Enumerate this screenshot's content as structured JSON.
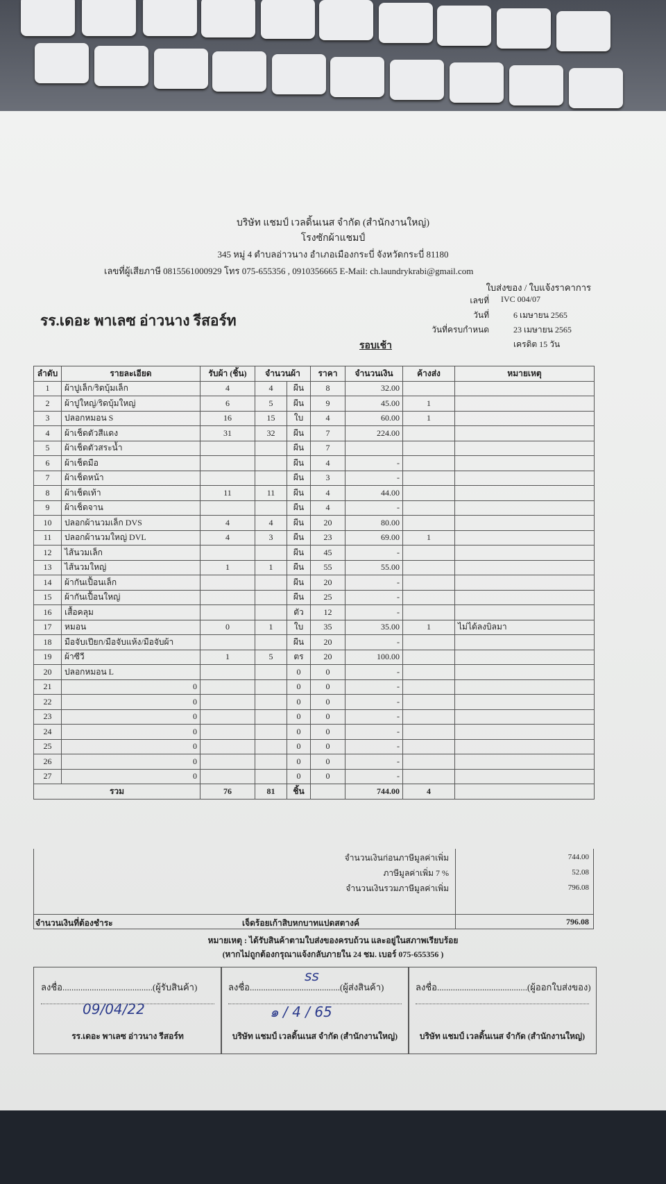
{
  "header": {
    "company": "บริษัท แชมป์ เวลดิ้นเนส จำกัด (สำนักงานใหญ่)",
    "shop": "โรงซักผ้าแชมป์",
    "address": "345 หมู่ 4 ตำบลอ่าวนาง อำเภอเมืองกระบี่ จังหวัดกระบี่ 81180",
    "contact": "เลขที่ผู้เสียภาษี 0815561000929 โทร 075-655356 , 0910356665  E-Mail: ch.laundrykrabi@gmail.com",
    "doc_type": "ใบส่งของ / ใบแจ้งราคาการ"
  },
  "customer": "รร.เดอะ พาเลซ อ่าวนาง รีสอร์ท",
  "meta": [
    {
      "label": "เลขที่",
      "value": "IVC 004/07"
    },
    {
      "label": "วันที่",
      "value": "6 เมษายน 2565"
    },
    {
      "label": "วันที่ครบกำหนด",
      "value": "23 เมษายน 2565"
    },
    {
      "label": "รอบเช้า",
      "value": "เครดิต 15 วัน"
    }
  ],
  "table": {
    "header": [
      "ลำดับ",
      "รายละเอียด",
      "รับผ้า (ชิ้น)",
      "จำนวนผ้า",
      "ราคา",
      "จำนวนเงิน",
      "ค้างส่ง",
      "หมายเหตุ"
    ],
    "rows": [
      {
        "no": "1",
        "item": "ผ้าปูเล็ก/ริดบุ้มเล็ก",
        "recv": "4",
        "qty": "4",
        "unit": "ผืน",
        "price": "8",
        "amount": "32.00"
      },
      {
        "no": "2",
        "item": "ผ้าปูใหญ่/ริดบุ้มใหญ่",
        "recv": "6",
        "qty": "5",
        "unit": "ผืน",
        "price": "9",
        "amount": "45.00",
        "pending": "1"
      },
      {
        "no": "3",
        "item": "ปลอกหมอน S",
        "recv": "16",
        "qty": "15",
        "unit": "ใบ",
        "price": "4",
        "amount": "60.00",
        "pending": "1"
      },
      {
        "no": "4",
        "item": "ผ้าเช็ดตัวสีแดง",
        "recv": "31",
        "qty": "32",
        "unit": "ผืน",
        "price": "7",
        "amount": "224.00"
      },
      {
        "no": "5",
        "item": "ผ้าเช็ดตัวสระน้ำ",
        "unit": "ผืน",
        "price": "7"
      },
      {
        "no": "6",
        "item": "ผ้าเช็ดมือ",
        "unit": "ผืน",
        "price": "4",
        "amount": "-"
      },
      {
        "no": "7",
        "item": "ผ้าเช็ดหน้า",
        "unit": "ผืน",
        "price": "3",
        "amount": "-"
      },
      {
        "no": "8",
        "item": "ผ้าเช็ดเท้า",
        "recv": "11",
        "qty": "11",
        "unit": "ผืน",
        "price": "4",
        "amount": "44.00"
      },
      {
        "no": "9",
        "item": "ผ้าเช็ดจาน",
        "unit": "ผืน",
        "price": "4",
        "amount": "-"
      },
      {
        "no": "10",
        "item": "ปลอกผ้านวมเล็ก DVS",
        "recv": "4",
        "qty": "4",
        "unit": "ผืน",
        "price": "20",
        "amount": "80.00"
      },
      {
        "no": "11",
        "item": "ปลอกผ้านวมใหญ่ DVL",
        "recv": "4",
        "qty": "3",
        "unit": "ผืน",
        "price": "23",
        "amount": "69.00",
        "pending": "1"
      },
      {
        "no": "12",
        "item": "ไส้นวมเล็ก",
        "unit": "ผืน",
        "price": "45",
        "amount": "-"
      },
      {
        "no": "13",
        "item": "ไส้นวมใหญ่",
        "recv": "1",
        "qty": "1",
        "unit": "ผืน",
        "price": "55",
        "amount": "55.00"
      },
      {
        "no": "14",
        "item": "ผ้ากันเปื้อนเล็ก",
        "unit": "ผืน",
        "price": "20",
        "amount": "-"
      },
      {
        "no": "15",
        "item": "ผ้ากันเปื้อนใหญ่",
        "unit": "ผืน",
        "price": "25",
        "amount": "-"
      },
      {
        "no": "16",
        "item": "เสื้อคลุม",
        "unit": "ตัว",
        "price": "12",
        "amount": "-"
      },
      {
        "no": "17",
        "item": "หมอน",
        "recv": "0",
        "qty": "1",
        "unit": "ใบ",
        "price": "35",
        "amount": "35.00",
        "pending": "1",
        "note": "ไม่ได้ลงบิลมา"
      },
      {
        "no": "18",
        "item": "มือจับเปียก/มือจับแห้ง/มือจับผ้า",
        "unit": "ผืน",
        "price": "20",
        "amount": "-"
      },
      {
        "no": "19",
        "item": "ผ้าซีวี",
        "recv": "1",
        "qty": "5",
        "unit": "ตร",
        "price": "20",
        "amount": "100.00"
      },
      {
        "no": "20",
        "item": "ปลอกหมอน L",
        "unit": "0",
        "price": "0",
        "amount": "-"
      },
      {
        "no": "21",
        "item": "0",
        "unit": "0",
        "price": "0",
        "amount": "-"
      },
      {
        "no": "22",
        "item": "0",
        "unit": "0",
        "price": "0",
        "amount": "-"
      },
      {
        "no": "23",
        "item": "0",
        "unit": "0",
        "price": "0",
        "amount": "-"
      },
      {
        "no": "24",
        "item": "0",
        "unit": "0",
        "price": "0",
        "amount": "-"
      },
      {
        "no": "25",
        "item": "0",
        "unit": "0",
        "price": "0",
        "amount": "-"
      },
      {
        "no": "26",
        "item": "0",
        "unit": "0",
        "price": "0",
        "amount": "-"
      },
      {
        "no": "27",
        "item": "0",
        "unit": "0",
        "price": "0",
        "amount": "-"
      }
    ],
    "total": {
      "label": "รวม",
      "recv": "76",
      "qty": "81",
      "unit": "ชิ้น",
      "amount": "744.00",
      "pending": "4"
    }
  },
  "summary": [
    {
      "label": "จำนวนเงินก่อนภาษีมูลค่าเพิ่ม",
      "value": "744.00"
    },
    {
      "label": "ภาษีมูลค่าเพิ่ม 7 %",
      "value": "52.08"
    },
    {
      "label": "จำนวนเงินรวมภาษีมูลค่าเพิ่ม",
      "value": "796.08"
    }
  ],
  "payable": {
    "label": "จำนวนเงินที่ต้องชำระ",
    "words": "เจ็ดร้อยเก้าสิบหกบาทแปดสตางค์",
    "value": "796.08"
  },
  "notes": [
    "หมายเหตุ : ได้รับสินค้าตามใบส่งของครบถ้วน และอยู่ในสภาพเรียบร้อย",
    "(หากไม่ถูกต้องกรุณาแจ้งกลับภายใน 24 ชม. เบอร์ 075-655356 )"
  ],
  "signatures": [
    {
      "line": "ลงชื่อ........................................(ผู้รับสินค้า)",
      "date": "09/04/22",
      "org": "รร.เดอะ พาเลซ อ่าวนาง รีสอร์ท"
    },
    {
      "line": "ลงชื่อ........................................(ผู้ส่งสินค้า)",
      "sign": "ss",
      "date": "๑ / 4 / 65",
      "org": "บริษัท แชมป์ เวลดิ้นเนส จำกัด (สำนักงานใหญ่)"
    },
    {
      "line": "ลงชื่อ........................................(ผู้ออกใบส่งของ)",
      "org": "บริษัท แชมป์ เวลดิ้นเนส จำกัด (สำนักงานใหญ่)"
    }
  ]
}
